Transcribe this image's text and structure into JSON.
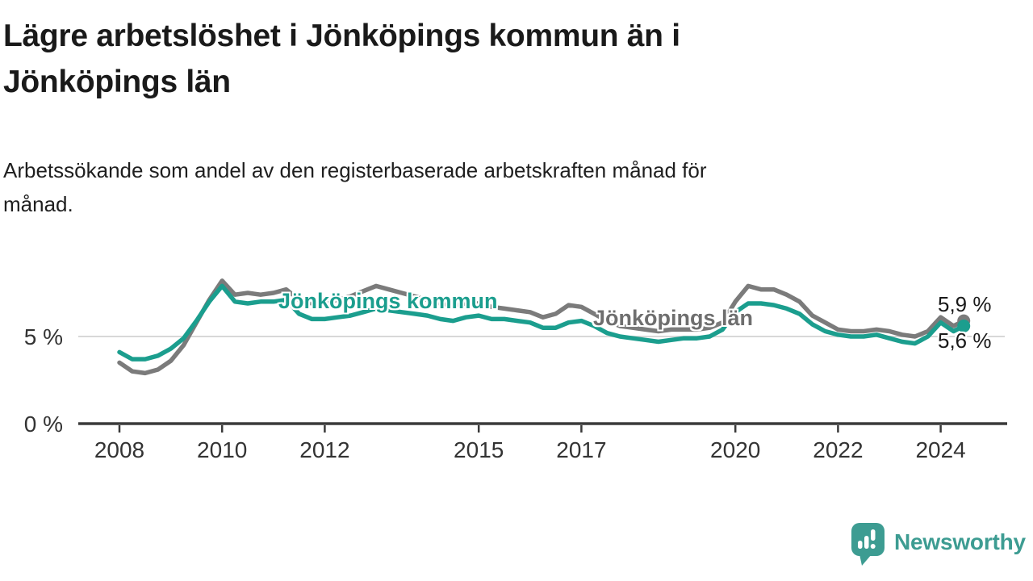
{
  "header": {
    "title": "Lägre arbetslöshet i Jönköpings kommun än i Jönköpings län",
    "subtitle": "Arbetssökande som andel av den registerbaserade arbetskraften månad för månad."
  },
  "footer": {
    "brand": "Newsworthy"
  },
  "colors": {
    "kommun_teal": "#1b9e8e",
    "lan_gray": "#7b7b7b",
    "brand_teal": "#3d9c92"
  },
  "chart_data": {
    "type": "line",
    "title": "Lägre arbetslöshet i Jönköpings kommun än i Jönköpings län",
    "subtitle": "Arbetssökande som andel av den registerbaserade arbetskraften månad för månad.",
    "unit": "%",
    "grid": "single horizontal gridline at 5 %",
    "legend_position": "inline labels on lines",
    "xlim": [
      2007.2,
      2025.3
    ],
    "ylim": [
      0,
      9
    ],
    "x_ticks": [
      2008,
      2010,
      2012,
      2015,
      2017,
      2020,
      2022,
      2024
    ],
    "y_ticks": [
      {
        "value": 0,
        "label": "0 %"
      },
      {
        "value": 5,
        "label": "5 %"
      }
    ],
    "x": [
      2008.0,
      2008.25,
      2008.5,
      2008.75,
      2009.0,
      2009.25,
      2009.5,
      2009.75,
      2010.0,
      2010.25,
      2010.5,
      2010.75,
      2011.0,
      2011.25,
      2011.5,
      2011.75,
      2012.0,
      2012.25,
      2012.5,
      2012.75,
      2013.0,
      2013.25,
      2013.5,
      2013.75,
      2014.0,
      2014.25,
      2014.5,
      2014.75,
      2015.0,
      2015.25,
      2015.5,
      2015.75,
      2016.0,
      2016.25,
      2016.5,
      2016.75,
      2017.0,
      2017.25,
      2017.5,
      2017.75,
      2018.0,
      2018.25,
      2018.5,
      2018.75,
      2019.0,
      2019.25,
      2019.5,
      2019.75,
      2020.0,
      2020.25,
      2020.5,
      2020.75,
      2021.0,
      2021.25,
      2021.5,
      2021.75,
      2022.0,
      2022.25,
      2022.5,
      2022.75,
      2023.0,
      2023.25,
      2023.5,
      2023.75,
      2024.0,
      2024.25,
      2024.45
    ],
    "series": [
      {
        "name": "Jönköpings län",
        "color": "#7b7b7b",
        "end_label": "5,9 %",
        "end_value": 5.9,
        "values": [
          3.5,
          3.0,
          2.9,
          3.1,
          3.6,
          4.5,
          5.8,
          7.1,
          8.2,
          7.4,
          7.5,
          7.4,
          7.5,
          7.7,
          7.1,
          6.9,
          7.0,
          7.1,
          7.3,
          7.6,
          7.9,
          7.7,
          7.5,
          7.3,
          7.1,
          6.9,
          6.8,
          6.9,
          6.9,
          6.7,
          6.6,
          6.5,
          6.4,
          6.1,
          6.3,
          6.8,
          6.7,
          6.3,
          5.9,
          5.6,
          5.5,
          5.4,
          5.3,
          5.4,
          5.4,
          5.4,
          5.5,
          5.8,
          7.0,
          7.9,
          7.7,
          7.7,
          7.4,
          7.0,
          6.2,
          5.8,
          5.4,
          5.3,
          5.3,
          5.4,
          5.3,
          5.1,
          5.0,
          5.3,
          6.1,
          5.6,
          5.9
        ]
      },
      {
        "name": "Jönköpings kommun",
        "color": "#1b9e8e",
        "end_label": "5,6 %",
        "end_value": 5.6,
        "values": [
          4.1,
          3.7,
          3.7,
          3.9,
          4.3,
          4.9,
          5.9,
          7.0,
          7.9,
          7.0,
          6.9,
          7.0,
          7.0,
          7.1,
          6.3,
          6.0,
          6.0,
          6.1,
          6.2,
          6.4,
          6.6,
          6.5,
          6.4,
          6.3,
          6.2,
          6.0,
          5.9,
          6.1,
          6.2,
          6.0,
          6.0,
          5.9,
          5.8,
          5.5,
          5.5,
          5.8,
          5.9,
          5.6,
          5.2,
          5.0,
          4.9,
          4.8,
          4.7,
          4.8,
          4.9,
          4.9,
          5.0,
          5.4,
          6.4,
          6.9,
          6.9,
          6.8,
          6.6,
          6.3,
          5.7,
          5.3,
          5.1,
          5.0,
          5.0,
          5.1,
          4.9,
          4.7,
          4.6,
          5.0,
          5.8,
          5.3,
          5.6
        ]
      }
    ]
  }
}
